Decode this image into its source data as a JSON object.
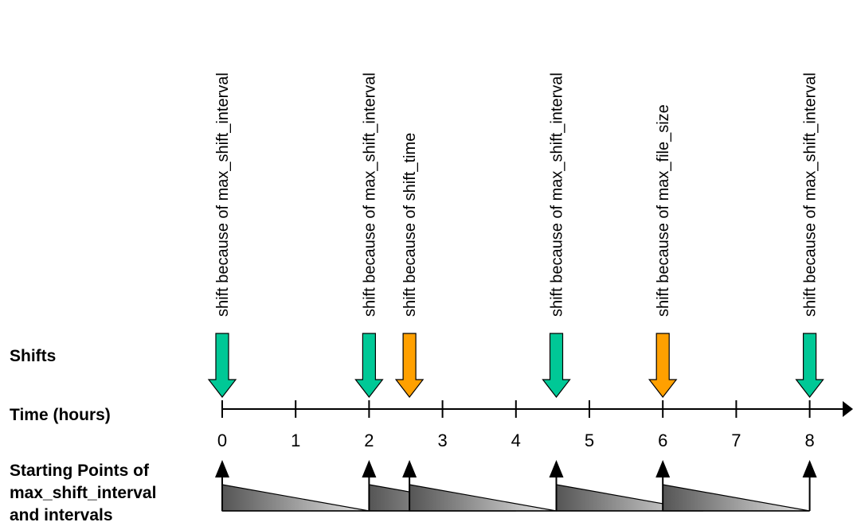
{
  "labels": {
    "shifts": "Shifts",
    "time": "Time (hours)",
    "starting_points": [
      "Starting Points of",
      "max_shift_interval",
      "and intervals"
    ]
  },
  "time_axis": {
    "ticks": [
      "0",
      "1",
      "2",
      "3",
      "4",
      "5",
      "6",
      "7",
      "8"
    ],
    "min": 0,
    "max": 8
  },
  "shifts": [
    {
      "time": 0,
      "reason": "shift because of max_shift_interval",
      "color": "#00c896"
    },
    {
      "time": 2,
      "reason": "shift because of max_shift_interval",
      "color": "#00c896"
    },
    {
      "time": 2.55,
      "reason": "shift because of shift_time",
      "color": "#ffa000"
    },
    {
      "time": 4.55,
      "reason": "shift because of max_shift_interval",
      "color": "#00c896"
    },
    {
      "time": 6,
      "reason": "shift because of max_file_size",
      "color": "#ffa000"
    },
    {
      "time": 8,
      "reason": "shift because of max_shift_interval",
      "color": "#00c896"
    }
  ],
  "starting_points": [
    0,
    2,
    2.55,
    4.55,
    6,
    8
  ],
  "intervals": [
    {
      "start": 0,
      "length": 2
    },
    {
      "start": 2,
      "length": 2
    },
    {
      "start": 2.55,
      "length": 2
    },
    {
      "start": 4.55,
      "length": 2
    },
    {
      "start": 6,
      "length": 2
    }
  ]
}
